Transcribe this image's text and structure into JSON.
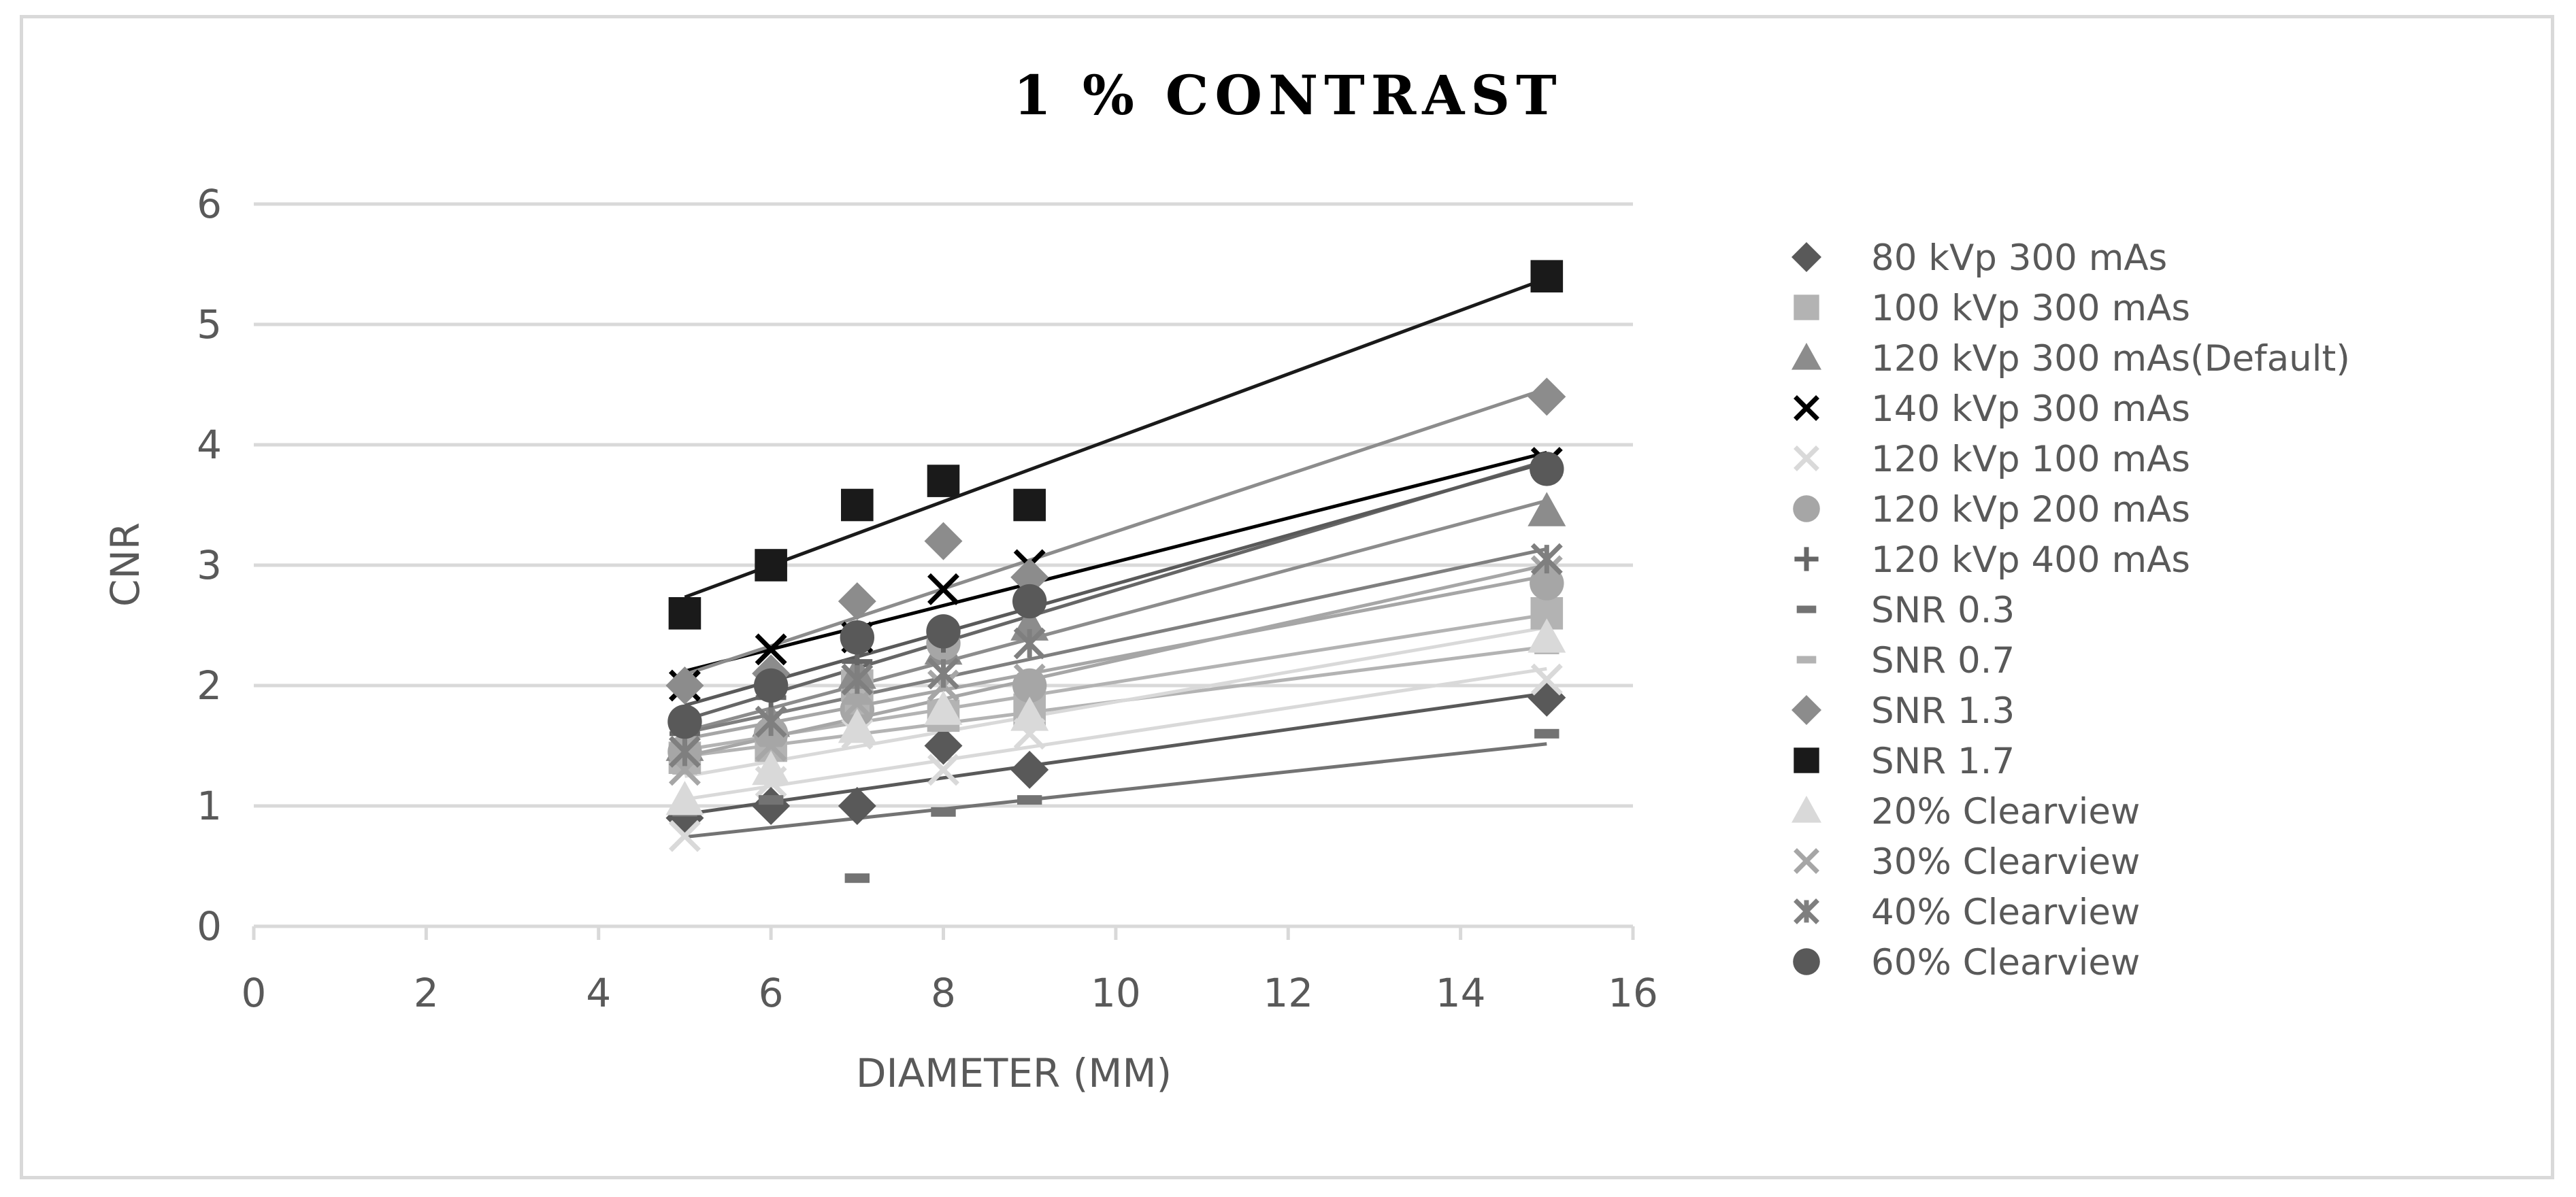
{
  "chart_data": {
    "type": "scatter",
    "title": "1 % CONTRAST",
    "xlabel": "DIAMETER (MM)",
    "ylabel": "CNR",
    "xlim": [
      0,
      16
    ],
    "ylim": [
      0,
      6
    ],
    "xticks": [
      0,
      2,
      4,
      6,
      8,
      10,
      12,
      14,
      16
    ],
    "yticks": [
      0,
      1,
      2,
      3,
      4,
      5,
      6
    ],
    "grid": "horizontal",
    "legend_position": "right",
    "trendlines": "linear",
    "series": [
      {
        "name": "80 kVp 300 mAs",
        "marker": "diamond",
        "color": "#595959",
        "x": [
          5,
          6,
          7,
          8,
          9,
          15
        ],
        "y": [
          0.9,
          1.0,
          1.0,
          1.5,
          1.3,
          1.9
        ]
      },
      {
        "name": "100 kVp 300 mAs",
        "marker": "square",
        "color": "#b3b3b3",
        "x": [
          5,
          6,
          7,
          8,
          9,
          15
        ],
        "y": [
          1.4,
          1.5,
          2.0,
          1.75,
          1.8,
          2.6
        ]
      },
      {
        "name": "120 kVp 300 mAs(Default)",
        "marker": "triangle",
        "color": "#8c8c8c",
        "x": [
          5,
          6,
          7,
          8,
          9,
          15
        ],
        "y": [
          1.5,
          1.7,
          2.1,
          2.3,
          2.5,
          3.45
        ]
      },
      {
        "name": "140 kVp 300 mAs",
        "marker": "x",
        "color": "#000000",
        "x": [
          5,
          6,
          7,
          8,
          9,
          15
        ],
        "y": [
          2.0,
          2.3,
          2.4,
          2.8,
          3.0,
          3.85
        ]
      },
      {
        "name": "120 kVp 100 mAs",
        "marker": "x",
        "color": "#d9d9d9",
        "x": [
          5,
          6,
          7,
          8,
          9,
          15
        ],
        "y": [
          0.75,
          1.2,
          1.6,
          1.3,
          1.6,
          2.05
        ]
      },
      {
        "name": "120 kVp 200 mAs",
        "marker": "circle",
        "color": "#a6a6a6",
        "x": [
          5,
          6,
          7,
          8,
          9,
          15
        ],
        "y": [
          1.45,
          1.6,
          1.8,
          2.35,
          2.0,
          2.85
        ]
      },
      {
        "name": "120 kVp 400 mAs",
        "marker": "plus",
        "color": "#666666",
        "x": [
          5,
          6,
          7,
          8,
          9,
          15
        ],
        "y": [
          1.6,
          1.9,
          2.2,
          2.4,
          2.7,
          3.8
        ]
      },
      {
        "name": "SNR 0.3",
        "marker": "dash",
        "color": "#737373",
        "x": [
          5,
          6,
          7,
          8,
          9,
          15
        ],
        "y": [
          0.95,
          1.05,
          0.4,
          0.95,
          1.05,
          1.6
        ]
      },
      {
        "name": "SNR 0.7",
        "marker": "dash",
        "color": "#b3b3b3",
        "x": [
          5,
          6,
          7,
          8,
          9,
          15
        ],
        "y": [
          1.3,
          1.45,
          1.8,
          1.75,
          1.7,
          2.3
        ]
      },
      {
        "name": "SNR 1.3",
        "marker": "diamond",
        "color": "#8c8c8c",
        "x": [
          5,
          6,
          7,
          8,
          9,
          15
        ],
        "y": [
          2.0,
          2.1,
          2.7,
          3.2,
          2.9,
          4.4
        ]
      },
      {
        "name": "SNR 1.7",
        "marker": "square",
        "color": "#1a1a1a",
        "x": [
          5,
          6,
          7,
          8,
          9,
          15
        ],
        "y": [
          2.6,
          3.0,
          3.5,
          3.7,
          3.5,
          5.4
        ]
      },
      {
        "name": "20% Clearview",
        "marker": "triangle",
        "color": "#d9d9d9",
        "x": [
          5,
          6,
          7,
          8,
          9,
          15
        ],
        "y": [
          1.05,
          1.3,
          1.65,
          1.8,
          1.75,
          2.4
        ]
      },
      {
        "name": "30% Clearview",
        "marker": "x",
        "color": "#a6a6a6",
        "x": [
          5,
          6,
          7,
          8,
          9,
          15
        ],
        "y": [
          1.3,
          1.5,
          1.85,
          2.0,
          2.05,
          2.95
        ]
      },
      {
        "name": "40% Clearview",
        "marker": "star",
        "color": "#7f7f7f",
        "x": [
          5,
          6,
          7,
          8,
          9,
          15
        ],
        "y": [
          1.45,
          1.7,
          2.05,
          2.1,
          2.35,
          3.05
        ]
      },
      {
        "name": "60% Clearview",
        "marker": "circle",
        "color": "#595959",
        "x": [
          5,
          6,
          7,
          8,
          9,
          15
        ],
        "y": [
          1.7,
          2.0,
          2.4,
          2.45,
          2.7,
          3.8
        ]
      }
    ]
  }
}
